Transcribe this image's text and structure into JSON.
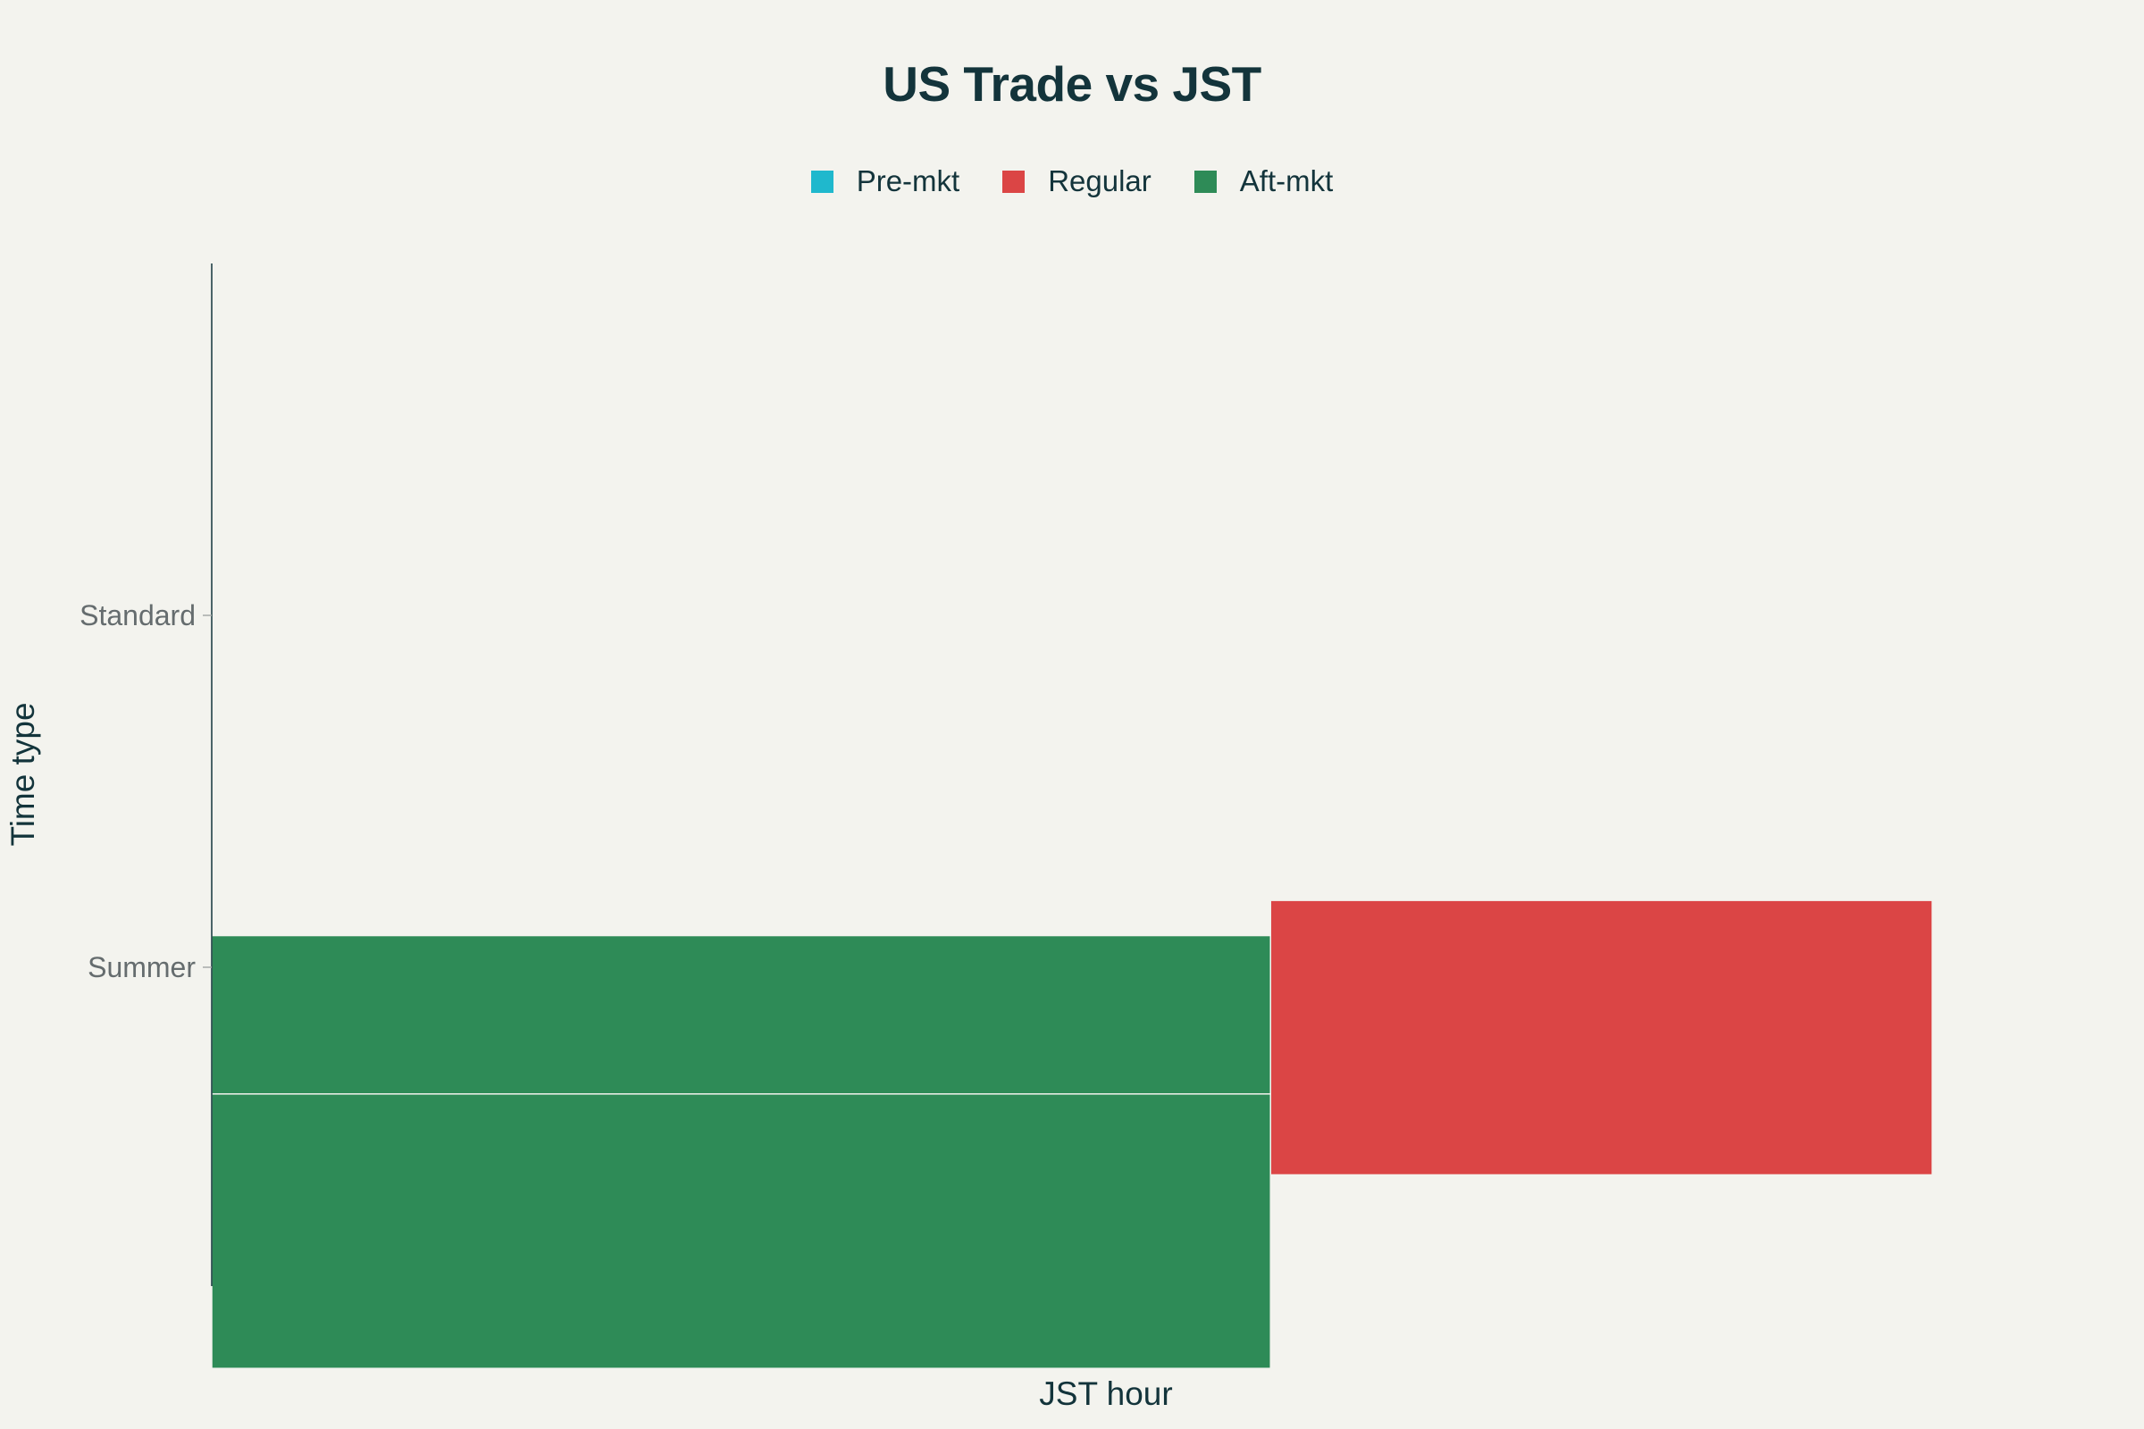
{
  "chart_data": {
    "type": "bar",
    "orientation": "horizontal",
    "barmode": "stack",
    "title": "US Trade vs JST",
    "xlabel": "JST hour",
    "ylabel": "Time type",
    "categories": [
      "Summer",
      "Standard"
    ],
    "xlim": [
      0,
      26
    ],
    "series": [
      {
        "name": "Pre-mkt",
        "color": "#1fb8cd",
        "segments": []
      },
      {
        "name": "Regular",
        "color": "#db4545",
        "segments": [
          {
            "category": "Summer",
            "start": 16,
            "end": 26,
            "offset": -0.2
          },
          {
            "category": "Summer",
            "start": 0,
            "end": 16,
            "offset": -0.55
          }
        ]
      },
      {
        "name": "Aft-mkt",
        "color": "#2e8b57",
        "segments": [
          {
            "category": "Summer",
            "start": 0,
            "end": 16,
            "offset": -0.3
          },
          {
            "category": "Summer",
            "start": 0,
            "end": 16,
            "offset": -0.75
          }
        ]
      }
    ],
    "legend": {
      "position": "top-center",
      "orientation": "horizontal"
    },
    "grid": false
  }
}
